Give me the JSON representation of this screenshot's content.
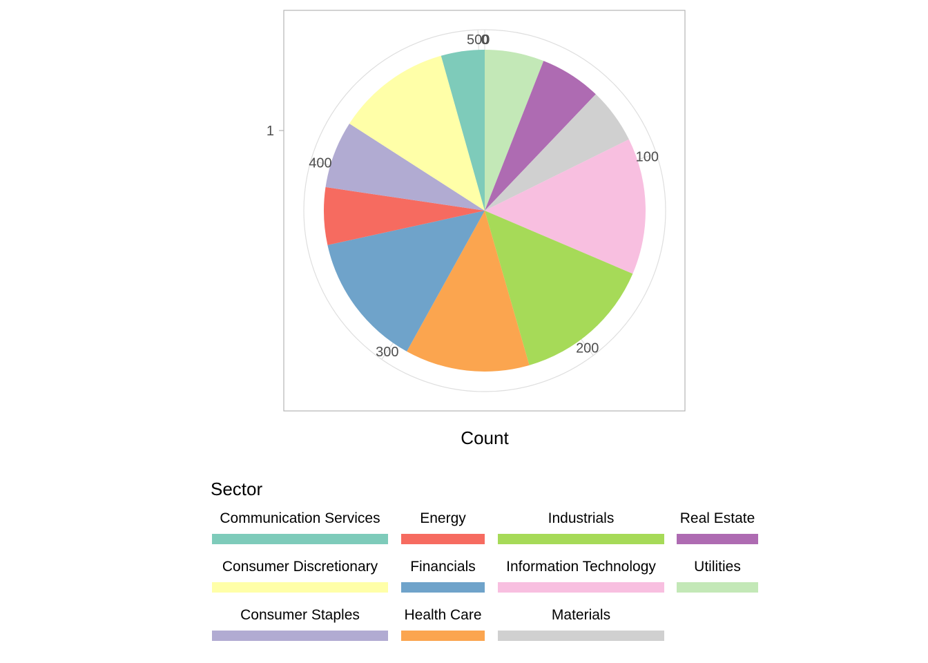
{
  "chart_data": {
    "type": "pie",
    "xlabel": "Count",
    "y_tick_label": "1",
    "legend_title": "Sector",
    "legend_position": "bottom",
    "total": 503,
    "radial_ticks": [
      {
        "value": 0,
        "label": "0"
      },
      {
        "value": 100,
        "label": "100"
      },
      {
        "value": 200,
        "label": "200"
      },
      {
        "value": 300,
        "label": "300"
      },
      {
        "value": 400,
        "label": "400"
      },
      {
        "value": 500,
        "label": "500"
      }
    ],
    "slices": [
      {
        "name": "Utilities",
        "value": 30,
        "color": "#C3E8B7"
      },
      {
        "name": "Real Estate",
        "value": 31,
        "color": "#AE6BB2"
      },
      {
        "name": "Materials",
        "value": 28,
        "color": "#D0D0D0"
      },
      {
        "name": "Information Technology",
        "value": 69,
        "color": "#F8BFE0"
      },
      {
        "name": "Industrials",
        "value": 71,
        "color": "#A6DA58"
      },
      {
        "name": "Health Care",
        "value": 63,
        "color": "#FBA54F"
      },
      {
        "name": "Financials",
        "value": 68,
        "color": "#6FA3CA"
      },
      {
        "name": "Energy",
        "value": 29,
        "color": "#F66B60"
      },
      {
        "name": "Consumer Staples",
        "value": 34,
        "color": "#B1ABD2"
      },
      {
        "name": "Consumer Discretionary",
        "value": 58,
        "color": "#FFFFA8"
      },
      {
        "name": "Communication Services",
        "value": 22,
        "color": "#7ECBBA"
      }
    ],
    "legend_columns": [
      [
        "Communication Services",
        "Consumer Discretionary",
        "Consumer Staples"
      ],
      [
        "Energy",
        "Financials",
        "Health Care"
      ],
      [
        "Industrials",
        "Information Technology",
        "Materials"
      ],
      [
        "Real Estate",
        "Utilities"
      ]
    ],
    "grid": true
  }
}
